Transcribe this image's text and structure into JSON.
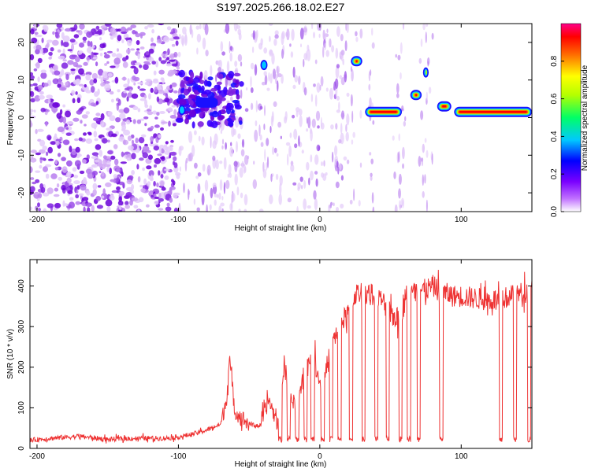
{
  "title": "S197.2025.266.18.02.E27",
  "chart_data": [
    {
      "type": "heatmap",
      "title": "S197.2025.266.18.02.E27",
      "xlabel": "Height of straight line (km)",
      "ylabel": "Frequency (Hz)",
      "xlim": [
        -205,
        150
      ],
      "ylim": [
        -25,
        25
      ],
      "xticks": [
        -200,
        -100,
        0,
        100
      ],
      "yticks": [
        -20,
        -10,
        0,
        10,
        20
      ],
      "colorbar": {
        "label": "Normalized spectral amplitude",
        "range": [
          0.0,
          1.0
        ],
        "ticks": [
          0.0,
          0.2,
          0.4,
          0.6,
          0.8
        ]
      },
      "noise_region": {
        "x_from": -205,
        "x_to": -100,
        "note": "scattered low-amplitude noise across all frequencies"
      },
      "features": [
        {
          "x_from": -100,
          "x_to": -95,
          "freq": 2,
          "amplitude": 0.35
        },
        {
          "x_from": -88,
          "x_to": -72,
          "freq": 4,
          "amplitude": 0.25
        },
        {
          "x_from": -42,
          "x_to": -37,
          "freq": 14,
          "amplitude": 0.4
        },
        {
          "x_from": 22,
          "x_to": 30,
          "freq": 15,
          "amplitude": 0.95
        },
        {
          "x_from": 32,
          "x_to": 58,
          "freq": 1.5,
          "amplitude": 0.95
        },
        {
          "x_from": 64,
          "x_to": 72,
          "freq": 6,
          "amplitude": 0.95
        },
        {
          "x_from": 73,
          "x_to": 77,
          "freq": 12,
          "amplitude": 0.55
        },
        {
          "x_from": 83,
          "x_to": 93,
          "freq": 3,
          "amplitude": 0.95
        },
        {
          "x_from": 95,
          "x_to": 150,
          "freq": 1.5,
          "amplitude": 0.95
        }
      ]
    },
    {
      "type": "line",
      "xlabel": "Height of straight line (km)",
      "ylabel": "SNR (10 * v/v)",
      "xlim": [
        -205,
        150
      ],
      "ylim": [
        0,
        465
      ],
      "xticks": [
        -200,
        -100,
        0,
        100
      ],
      "yticks": [
        0,
        100,
        200,
        300,
        400
      ],
      "color": "#ee3333",
      "x": [
        -205,
        -190,
        -170,
        -150,
        -130,
        -110,
        -100,
        -90,
        -80,
        -70,
        -66,
        -64,
        -60,
        -50,
        -42,
        -36,
        -30,
        -25,
        -20,
        -15,
        -10,
        -5,
        0,
        5,
        10,
        15,
        20,
        25,
        30,
        35,
        40,
        45,
        50,
        55,
        60,
        65,
        70,
        75,
        80,
        85,
        90,
        95,
        100,
        110,
        120,
        130,
        135,
        140,
        145,
        150
      ],
      "y": [
        20,
        25,
        30,
        22,
        25,
        25,
        28,
        35,
        45,
        60,
        120,
        220,
        90,
        60,
        55,
        120,
        60,
        210,
        110,
        120,
        190,
        240,
        160,
        200,
        270,
        310,
        330,
        380,
        385,
        380,
        375,
        360,
        330,
        320,
        350,
        380,
        390,
        390,
        400,
        385,
        380,
        375,
        375,
        370,
        365,
        370,
        375,
        380,
        385,
        390
      ],
      "dips": [
        -28,
        -22,
        -16,
        -10,
        -5,
        2,
        8,
        14,
        22,
        31,
        40,
        48,
        57,
        63,
        70,
        86,
        128,
        138,
        148
      ]
    }
  ]
}
